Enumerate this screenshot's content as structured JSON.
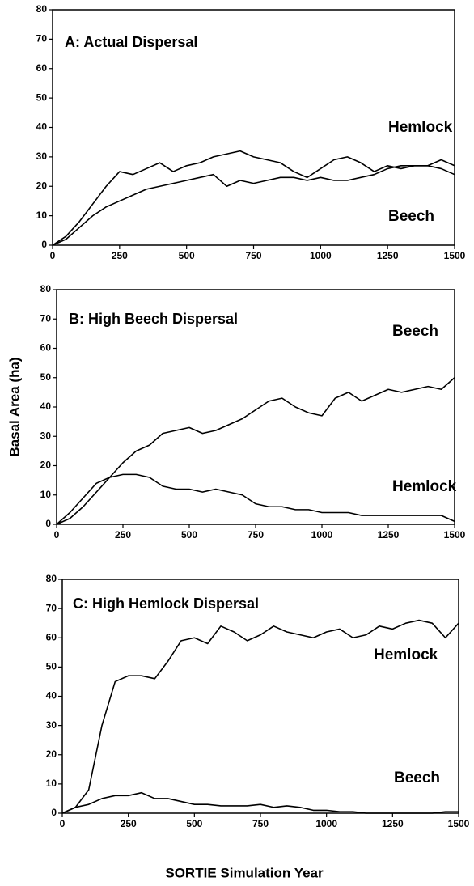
{
  "chart_data": [
    {
      "type": "line",
      "title": "A: Actual Dispersal",
      "x": [
        0,
        50,
        100,
        150,
        200,
        250,
        300,
        350,
        400,
        450,
        500,
        550,
        600,
        650,
        700,
        750,
        800,
        850,
        900,
        950,
        1000,
        1050,
        1100,
        1150,
        1200,
        1250,
        1300,
        1350,
        1400,
        1450,
        1500
      ],
      "series": [
        {
          "name": "Hemlock",
          "color": "#000000",
          "values": [
            0,
            3,
            8,
            14,
            20,
            25,
            24,
            26,
            28,
            25,
            27,
            28,
            30,
            31,
            32,
            30,
            29,
            28,
            25,
            23,
            26,
            29,
            30,
            28,
            25,
            27,
            26,
            27,
            27,
            29,
            27
          ]
        },
        {
          "name": "Beech",
          "color": "#000000",
          "values": [
            0,
            2,
            6,
            10,
            13,
            15,
            17,
            19,
            20,
            21,
            22,
            23,
            24,
            20,
            22,
            21,
            22,
            23,
            23,
            22,
            23,
            22,
            22,
            23,
            24,
            26,
            27,
            27,
            27,
            26,
            24
          ]
        }
      ],
      "xlim": [
        0,
        1500
      ],
      "xticks": [
        0,
        250,
        500,
        750,
        1000,
        1250,
        1500
      ],
      "ylim": [
        0,
        80
      ],
      "yticks": [
        0,
        10,
        20,
        30,
        40,
        50,
        60,
        70,
        80
      ]
    },
    {
      "type": "line",
      "title": "B: High Beech Dispersal",
      "ylabel": "Basal Area (ha)",
      "x": [
        0,
        50,
        100,
        150,
        200,
        250,
        300,
        350,
        400,
        450,
        500,
        550,
        600,
        650,
        700,
        750,
        800,
        850,
        900,
        950,
        1000,
        1050,
        1100,
        1150,
        1200,
        1250,
        1300,
        1350,
        1400,
        1450,
        1500
      ],
      "series": [
        {
          "name": "Beech",
          "color": "#000000",
          "values": [
            0,
            2,
            6,
            11,
            16,
            21,
            25,
            27,
            31,
            32,
            33,
            31,
            32,
            34,
            36,
            39,
            42,
            43,
            40,
            38,
            37,
            43,
            45,
            42,
            44,
            46,
            45,
            46,
            47,
            46,
            50
          ]
        },
        {
          "name": "Hemlock",
          "color": "#000000",
          "values": [
            0,
            4,
            9,
            14,
            16,
            17,
            17,
            16,
            13,
            12,
            12,
            11,
            12,
            11,
            10,
            7,
            6,
            6,
            5,
            5,
            4,
            4,
            4,
            3,
            3,
            3,
            3,
            3,
            3,
            3,
            1
          ]
        }
      ],
      "xlim": [
        0,
        1500
      ],
      "xticks": [
        0,
        250,
        500,
        750,
        1000,
        1250,
        1500
      ],
      "ylim": [
        0,
        80
      ],
      "yticks": [
        0,
        10,
        20,
        30,
        40,
        50,
        60,
        70,
        80
      ]
    },
    {
      "type": "line",
      "title": "C: High Hemlock Dispersal",
      "xlabel": "SORTIE Simulation Year",
      "x": [
        0,
        50,
        100,
        150,
        200,
        250,
        300,
        350,
        400,
        450,
        500,
        550,
        600,
        650,
        700,
        750,
        800,
        850,
        900,
        950,
        1000,
        1050,
        1100,
        1150,
        1200,
        1250,
        1300,
        1350,
        1400,
        1450,
        1500
      ],
      "series": [
        {
          "name": "Hemlock",
          "color": "#000000",
          "values": [
            0,
            2,
            8,
            30,
            45,
            47,
            47,
            46,
            52,
            59,
            60,
            58,
            64,
            62,
            59,
            61,
            64,
            62,
            61,
            60,
            62,
            63,
            60,
            61,
            64,
            63,
            65,
            66,
            65,
            60,
            65
          ]
        },
        {
          "name": "Beech",
          "color": "#000000",
          "values": [
            0,
            2,
            3,
            5,
            6,
            6,
            7,
            5,
            5,
            4,
            3,
            3,
            2.5,
            2.5,
            2.5,
            3,
            2,
            2.5,
            2,
            1,
            1,
            0.5,
            0.5,
            0,
            0,
            0,
            0,
            0,
            0,
            0.5,
            0.5
          ]
        }
      ],
      "xlim": [
        0,
        1500
      ],
      "xticks": [
        0,
        250,
        500,
        750,
        1000,
        1250,
        1500
      ],
      "ylim": [
        0,
        80
      ],
      "yticks": [
        0,
        10,
        20,
        30,
        40,
        50,
        60,
        70,
        80
      ]
    }
  ]
}
